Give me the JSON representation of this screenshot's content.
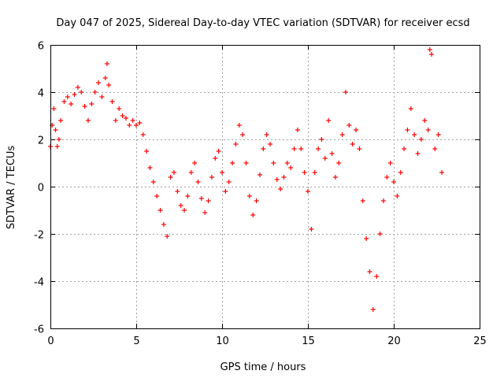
{
  "chart_data": {
    "type": "scatter",
    "title": "Day 047 of 2025, Sidereal Day-to-day VTEC variation (SDTVAR) for receiver ecsd",
    "xlabel": "GPS time / hours",
    "ylabel": "SDTVAR / TECUs",
    "xlim": [
      0,
      25
    ],
    "ylim": [
      -6,
      6
    ],
    "xticks": [
      0,
      5,
      10,
      15,
      20,
      25
    ],
    "yticks": [
      -6,
      -4,
      -2,
      0,
      2,
      4,
      6
    ],
    "xtick_labels": [
      "0",
      "5",
      "10",
      "15",
      "20",
      "25"
    ],
    "ytick_labels": [
      "-6",
      "-4",
      "-2",
      "0",
      "2",
      "4",
      "6"
    ],
    "grid": true,
    "marker": "plus",
    "color": "#ff0000",
    "series": [
      {
        "name": "SDTVAR",
        "x": [
          0.0,
          0.1,
          0.2,
          0.3,
          0.4,
          0.5,
          0.6,
          0.8,
          1.0,
          1.2,
          1.4,
          1.6,
          1.8,
          2.0,
          2.2,
          2.4,
          2.6,
          2.8,
          3.0,
          3.2,
          3.3,
          3.4,
          3.6,
          3.8,
          4.0,
          4.2,
          4.4,
          4.6,
          4.8,
          5.0,
          5.2,
          5.4,
          5.6,
          5.8,
          6.0,
          6.2,
          6.4,
          6.6,
          6.8,
          7.0,
          7.2,
          7.4,
          7.6,
          7.8,
          8.0,
          8.2,
          8.4,
          8.6,
          8.8,
          9.0,
          9.2,
          9.4,
          9.6,
          9.8,
          10.0,
          10.2,
          10.4,
          10.6,
          10.8,
          11.0,
          11.2,
          11.4,
          11.6,
          11.8,
          12.0,
          12.2,
          12.4,
          12.6,
          12.8,
          13.0,
          13.2,
          13.4,
          13.6,
          13.8,
          14.0,
          14.2,
          14.4,
          14.6,
          14.8,
          15.0,
          15.2,
          15.4,
          15.6,
          15.8,
          16.0,
          16.2,
          16.4,
          16.6,
          16.8,
          17.0,
          17.2,
          17.4,
          17.6,
          17.8,
          18.0,
          18.2,
          18.4,
          18.6,
          18.8,
          19.0,
          19.2,
          19.4,
          19.6,
          19.8,
          20.0,
          20.2,
          20.4,
          20.6,
          20.8,
          21.0,
          21.2,
          21.4,
          21.6,
          21.8,
          22.0,
          22.1,
          22.2,
          22.4,
          22.6,
          22.8
        ],
        "y": [
          1.7,
          2.6,
          3.3,
          2.4,
          1.7,
          2.0,
          2.8,
          3.6,
          3.8,
          3.5,
          3.9,
          4.2,
          4.0,
          3.4,
          2.8,
          3.5,
          4.0,
          4.4,
          3.8,
          4.6,
          5.2,
          4.3,
          3.6,
          2.8,
          3.3,
          3.0,
          2.9,
          2.6,
          2.8,
          2.6,
          2.7,
          2.2,
          1.5,
          0.8,
          0.2,
          -0.4,
          -1.0,
          -1.6,
          -2.1,
          0.4,
          0.6,
          -0.2,
          -0.8,
          -1.0,
          -0.4,
          0.6,
          1.0,
          0.2,
          -0.5,
          -1.1,
          -0.6,
          0.4,
          1.2,
          1.5,
          0.6,
          -0.2,
          0.2,
          1.0,
          1.8,
          2.6,
          2.2,
          1.0,
          -0.4,
          -1.2,
          -0.6,
          0.5,
          1.6,
          2.2,
          1.8,
          1.0,
          0.3,
          -0.1,
          0.4,
          1.0,
          0.8,
          1.6,
          2.4,
          1.6,
          0.6,
          -0.2,
          -1.8,
          0.6,
          1.6,
          2.0,
          1.2,
          2.8,
          1.4,
          0.4,
          1.0,
          2.2,
          4.0,
          2.6,
          1.8,
          2.4,
          1.6,
          -0.6,
          -2.2,
          -3.6,
          -5.2,
          -3.8,
          -2.0,
          -0.6,
          0.4,
          1.0,
          0.2,
          -0.4,
          0.6,
          1.6,
          2.4,
          3.3,
          2.2,
          1.4,
          2.0,
          2.8,
          2.4,
          5.8,
          5.6,
          1.6,
          2.2,
          0.6
        ]
      }
    ]
  }
}
